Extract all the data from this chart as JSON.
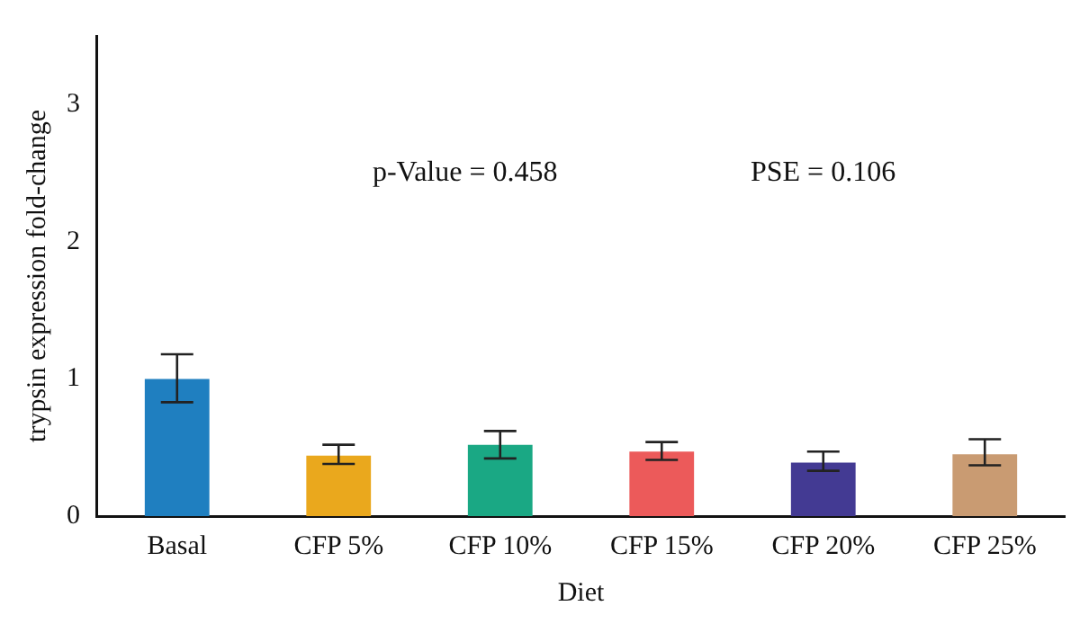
{
  "chart_data": {
    "type": "bar",
    "xlabel": "Diet",
    "ylabel": "trypsin expression fold-change",
    "categories": [
      "Basal",
      "CFP 5%",
      "CFP 10%",
      "CFP 15%",
      "CFP 20%",
      "CFP 25%"
    ],
    "values": [
      1.0,
      0.44,
      0.52,
      0.47,
      0.39,
      0.45
    ],
    "colors": [
      "#1f7fc0",
      "#eaa81d",
      "#1aa884",
      "#ec5a5a",
      "#433a93",
      "#c99b72"
    ],
    "errors": [
      [
        0.83,
        1.18
      ],
      [
        0.38,
        0.52
      ],
      [
        0.42,
        0.62
      ],
      [
        0.41,
        0.54
      ],
      [
        0.33,
        0.47
      ],
      [
        0.37,
        0.56
      ]
    ],
    "annotations": [
      "p-Value = 0.458",
      "PSE = 0.106"
    ],
    "ylim": [
      0,
      3.5
    ],
    "yticks": [
      0,
      1,
      2,
      3
    ],
    "grid": false,
    "legend": false
  }
}
